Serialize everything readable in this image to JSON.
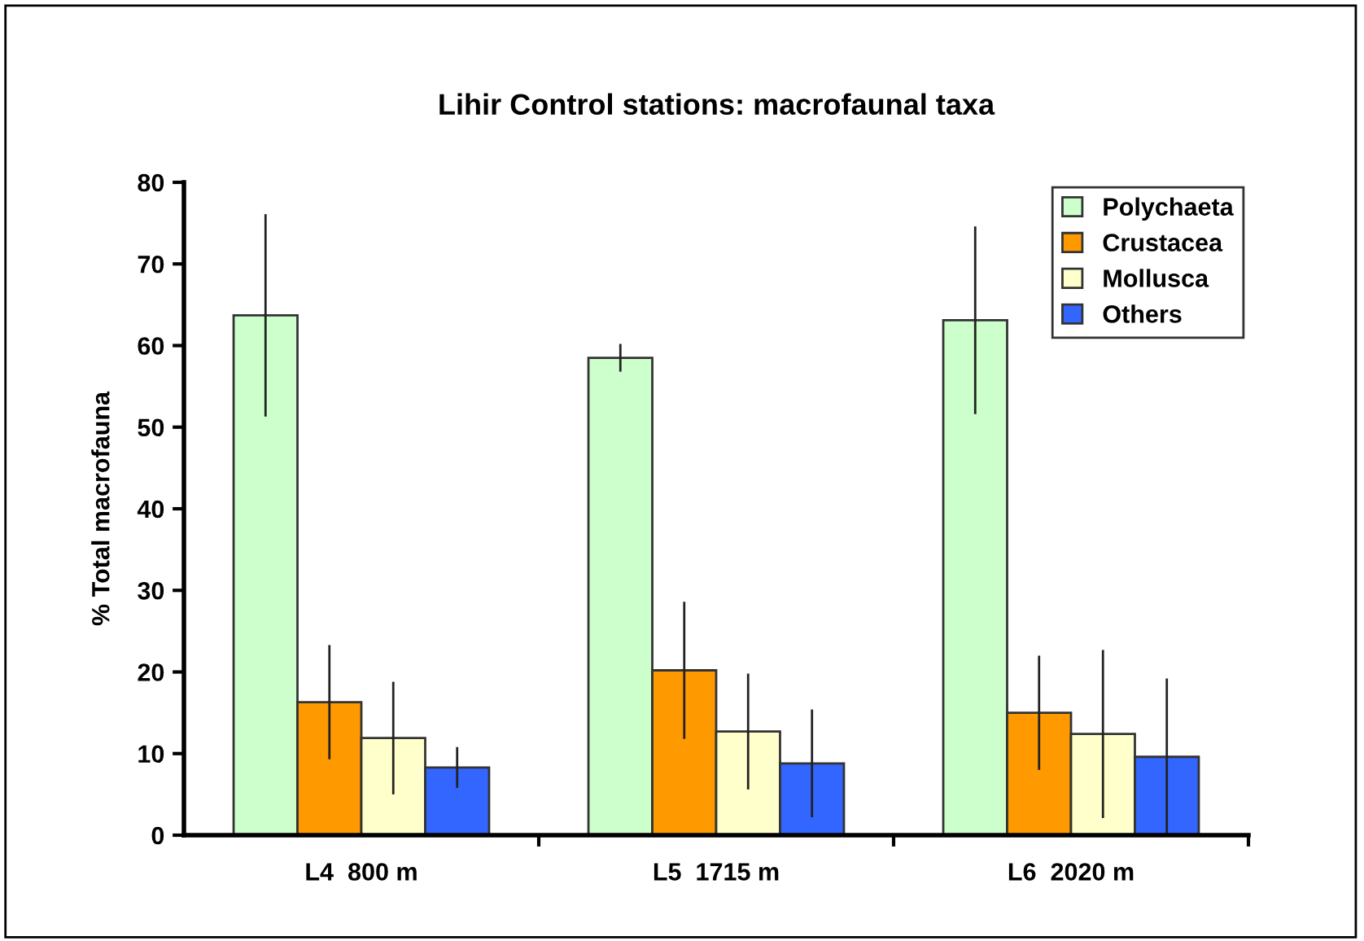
{
  "chart_data": {
    "type": "bar",
    "title": "Lihir Control stations: macrofaunal taxa",
    "ylabel": "% Total macrofauna",
    "categories": [
      "L4  800 m",
      "L5  1715 m",
      "L6  2020 m"
    ],
    "series": [
      {
        "name": "Polychaeta",
        "color": "#ccffcc",
        "values": [
          63.7,
          58.5,
          63.1
        ],
        "errors": [
          12.4,
          1.7,
          11.5
        ]
      },
      {
        "name": "Crustacea",
        "color": "#ff9900",
        "values": [
          16.3,
          20.2,
          15.0
        ],
        "errors": [
          7.0,
          8.4,
          7.0
        ]
      },
      {
        "name": "Mollusca",
        "color": "#ffffcc",
        "values": [
          11.9,
          12.7,
          12.4
        ],
        "errors": [
          6.9,
          7.1,
          10.3
        ]
      },
      {
        "name": "Others",
        "color": "#3366ff",
        "values": [
          8.3,
          8.8,
          9.6
        ],
        "errors": [
          2.5,
          6.6,
          9.6
        ]
      }
    ],
    "ylim": [
      0,
      80
    ],
    "yticks": [
      0,
      10,
      20,
      30,
      40,
      50,
      60,
      70,
      80
    ],
    "grid": false,
    "legend": "top right"
  }
}
